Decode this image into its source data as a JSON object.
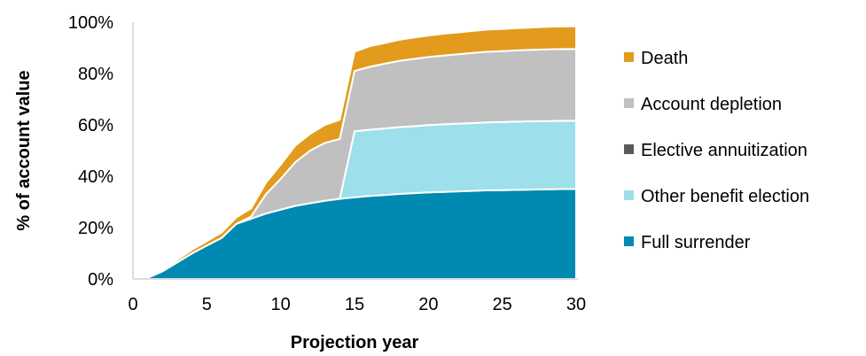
{
  "chart_data": {
    "type": "area",
    "stacked": true,
    "xlabel": "Projection year",
    "ylabel": "% of account value",
    "xlim": [
      0,
      30
    ],
    "ylim": [
      0,
      100
    ],
    "x_ticks": [
      0,
      5,
      10,
      15,
      20,
      25,
      30
    ],
    "y_ticks": [
      0,
      20,
      40,
      60,
      80,
      100
    ],
    "y_tick_format": "percent",
    "grid": false,
    "legend_position": "right",
    "legend_order": [
      "Death",
      "Account depletion",
      "Elective annuitization",
      "Other benefit election",
      "Full surrender"
    ],
    "x": [
      0,
      1,
      2,
      3,
      4,
      5,
      6,
      7,
      8,
      9,
      10,
      11,
      12,
      13,
      14,
      15,
      16,
      17,
      18,
      19,
      20,
      21,
      22,
      23,
      24,
      25,
      26,
      27,
      28,
      29,
      30
    ],
    "series": [
      {
        "name": "Full surrender",
        "color": "#0089b1",
        "values": [
          0,
          0.5,
          3,
          6.5,
          10,
          13,
          16,
          21.5,
          23.5,
          25.5,
          27,
          28.5,
          29.5,
          30.5,
          31.2,
          31.8,
          32.3,
          32.7,
          33.1,
          33.4,
          33.7,
          33.9,
          34.1,
          34.3,
          34.5,
          34.6,
          34.7,
          34.8,
          34.9,
          35,
          35
        ]
      },
      {
        "name": "Other benefit election",
        "color": "#9ddfea",
        "values": [
          0,
          0,
          0,
          0,
          0,
          0,
          0,
          0,
          0,
          0,
          0,
          0,
          0,
          0,
          0,
          25.7,
          25.8,
          25.9,
          26,
          26.1,
          26.2,
          26.3,
          26.4,
          26.4,
          26.5,
          26.5,
          26.6,
          26.6,
          26.6,
          26.6,
          26.6
        ]
      },
      {
        "name": "Elective annuitization",
        "color": "#595959",
        "values": [
          0,
          0,
          0,
          0,
          0,
          0,
          0,
          0,
          0,
          0,
          0,
          0,
          0,
          0,
          0,
          0,
          0,
          0,
          0,
          0,
          0,
          0,
          0,
          0,
          0,
          0,
          0,
          0,
          0,
          0,
          0
        ]
      },
      {
        "name": "Account depletion",
        "color": "#c0c0c0",
        "values": [
          0,
          0,
          0,
          0,
          0,
          0,
          0,
          0,
          0.8,
          7.5,
          12,
          17,
          20.5,
          22.5,
          23.3,
          23.5,
          24.5,
          25.2,
          25.8,
          26.2,
          26.5,
          26.8,
          27,
          27.3,
          27.5,
          27.6,
          27.7,
          27.8,
          27.9,
          27.9,
          28
        ]
      },
      {
        "name": "Death",
        "color": "#e29b1c",
        "values": [
          0,
          0.3,
          0.6,
          1,
          1.4,
          1.7,
          2.1,
          2.5,
          3.2,
          4.5,
          5.5,
          6.5,
          6.5,
          7,
          7.5,
          7.5,
          8,
          8,
          8.2,
          8.3,
          8.4,
          8.5,
          8.5,
          8.6,
          8.6,
          8.6,
          8.7,
          8.7,
          8.8,
          8.8,
          8.8
        ]
      }
    ]
  }
}
